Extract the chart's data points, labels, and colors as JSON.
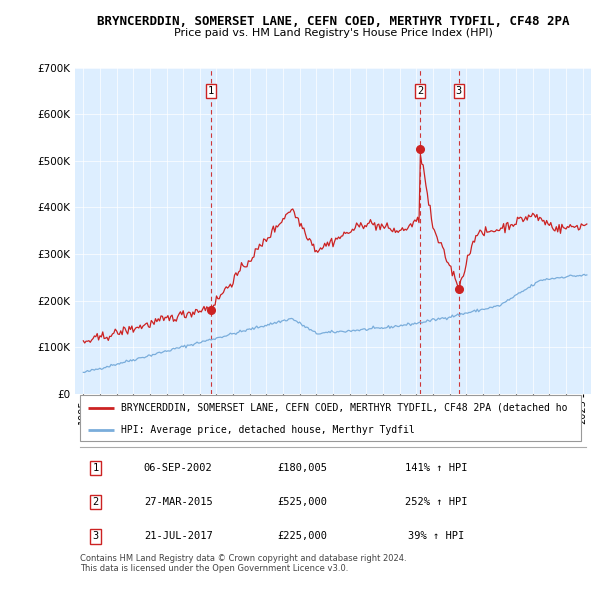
{
  "title_line1": "BRYNCERDDIN, SOMERSET LANE, CEFN COED, MERTHYR TYDFIL, CF48 2PA",
  "title_line2": "Price paid vs. HM Land Registry's House Price Index (HPI)",
  "ylim": [
    0,
    700000
  ],
  "yticks": [
    0,
    100000,
    200000,
    300000,
    400000,
    500000,
    600000,
    700000
  ],
  "ytick_labels": [
    "£0",
    "£100K",
    "£200K",
    "£300K",
    "£400K",
    "£500K",
    "£600K",
    "£700K"
  ],
  "xlim_start": 1994.5,
  "xlim_end": 2025.5,
  "xtick_years": [
    1995,
    1996,
    1997,
    1998,
    1999,
    2000,
    2001,
    2002,
    2003,
    2004,
    2005,
    2006,
    2007,
    2008,
    2009,
    2010,
    2011,
    2012,
    2013,
    2014,
    2015,
    2016,
    2017,
    2018,
    2019,
    2020,
    2021,
    2022,
    2023,
    2024,
    2025
  ],
  "hpi_color": "#7aaddb",
  "price_color": "#cc2222",
  "vline_color": "#cc2222",
  "grid_color": "#cccccc",
  "bg_color": "#ddeeff",
  "sale_points": [
    {
      "year": 2002.68,
      "price": 180005,
      "label": "1"
    },
    {
      "year": 2015.23,
      "price": 525000,
      "label": "2"
    },
    {
      "year": 2017.55,
      "price": 225000,
      "label": "3"
    }
  ],
  "legend_entries": [
    {
      "label": "BRYNCERDDIN, SOMERSET LANE, CEFN COED, MERTHYR TYDFIL, CF48 2PA (detached ho",
      "color": "#cc2222"
    },
    {
      "label": "HPI: Average price, detached house, Merthyr Tydfil",
      "color": "#7aaddb"
    }
  ],
  "table_rows": [
    {
      "num": "1",
      "date": "06-SEP-2002",
      "price": "£180,005",
      "hpi": "141% ↑ HPI"
    },
    {
      "num": "2",
      "date": "27-MAR-2015",
      "price": "£525,000",
      "hpi": "252% ↑ HPI"
    },
    {
      "num": "3",
      "date": "21-JUL-2017",
      "price": "£225,000",
      "hpi": "39% ↑ HPI"
    }
  ],
  "footer": "Contains HM Land Registry data © Crown copyright and database right 2024.\nThis data is licensed under the Open Government Licence v3.0."
}
